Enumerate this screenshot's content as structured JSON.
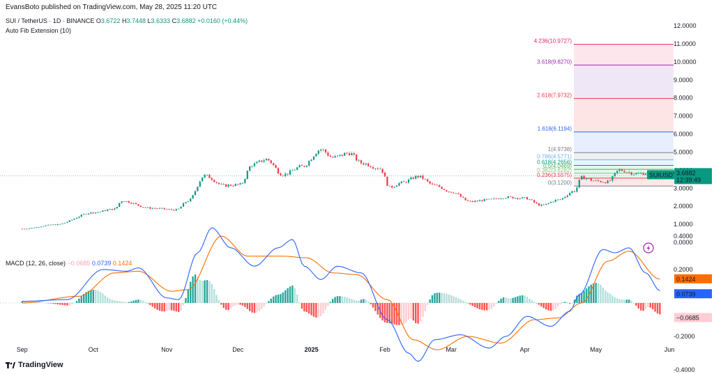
{
  "publisher": "EvansBoto published on TradingView.com, May 28, 2025 11:20 UTC",
  "header": {
    "symbol": "SUI / TetherUS · 1D · BINANCE",
    "o_label": "O",
    "o": "3.6722",
    "h_label": "H",
    "h": "3.7448",
    "l_label": "L",
    "l": "3.6333",
    "c_label": "C",
    "c": "3.6882",
    "change": "+0.0160 (+0.44%)"
  },
  "indicator_label": "Auto Fib Extension (10)",
  "macd_legend": {
    "name": "MACD (12, 26, close)",
    "hist": "−0.0685",
    "macd": "0.0739",
    "signal": "0.1424"
  },
  "brand": "TradingView",
  "icon": "lightning-icon",
  "colors": {
    "up": "#089981",
    "down": "#f23645",
    "macd": "#2962ff",
    "signal": "#ff6d00",
    "hist_up_strong": "#26a69a",
    "hist_up_weak": "#b2dfdb",
    "hist_down_strong": "#ff5252",
    "hist_down_weak": "#ffcdd2"
  },
  "chart_data": [
    {
      "type": "candlestick",
      "title": "SUI / TetherUS · 1D · BINANCE",
      "price_axis_ticks": [
        "12.0000",
        "11.0000",
        "10.0000",
        "9.0000",
        "8.0000",
        "7.0000",
        "6.0000",
        "5.0000",
        "4.0000",
        "3.0000",
        "2.0000",
        "1.0000",
        "0.0000"
      ],
      "ylim": [
        -0.3,
        12.3
      ],
      "x_ticks": [
        "Sep",
        "Oct",
        "Nov",
        "Dec",
        "2025",
        "Feb",
        "Mar",
        "Apr",
        "May",
        "Jun"
      ],
      "last_price_label": "SUIUSDT",
      "last_price": "3.6882",
      "countdown": "12:39:49",
      "grid": false,
      "anchors": [
        [
          "2024-09-01",
          0.75
        ],
        [
          "2024-09-15",
          0.98
        ],
        [
          "2024-10-01",
          1.65
        ],
        [
          "2024-10-10",
          1.85
        ],
        [
          "2024-10-13",
          2.3
        ],
        [
          "2024-10-25",
          1.9
        ],
        [
          "2024-11-05",
          1.8
        ],
        [
          "2024-11-10",
          2.3
        ],
        [
          "2024-11-17",
          3.7
        ],
        [
          "2024-11-25",
          3.15
        ],
        [
          "2024-12-02",
          3.2
        ],
        [
          "2024-12-07",
          4.3
        ],
        [
          "2024-12-13",
          4.6
        ],
        [
          "2024-12-20",
          3.75
        ],
        [
          "2024-12-28",
          4.2
        ],
        [
          "2025-01-05",
          5.15
        ],
        [
          "2025-01-10",
          4.7
        ],
        [
          "2025-01-17",
          4.95
        ],
        [
          "2025-01-22",
          4.4
        ],
        [
          "2025-01-30",
          4.1
        ],
        [
          "2025-02-03",
          3.05
        ],
        [
          "2025-02-08",
          3.3
        ],
        [
          "2025-02-15",
          3.65
        ],
        [
          "2025-02-22",
          3.15
        ],
        [
          "2025-03-01",
          2.8
        ],
        [
          "2025-03-09",
          2.25
        ],
        [
          "2025-03-16",
          2.35
        ],
        [
          "2025-03-24",
          2.5
        ],
        [
          "2025-04-01",
          2.45
        ],
        [
          "2025-04-08",
          2.05
        ],
        [
          "2025-04-15",
          2.35
        ],
        [
          "2025-04-22",
          2.85
        ],
        [
          "2025-04-25",
          3.6
        ],
        [
          "2025-05-01",
          3.4
        ],
        [
          "2025-05-06",
          3.35
        ],
        [
          "2025-05-11",
          4.0
        ],
        [
          "2025-05-18",
          3.8
        ],
        [
          "2025-05-24",
          3.85
        ],
        [
          "2025-05-28",
          3.69
        ]
      ],
      "fib_extension": {
        "levels": [
          {
            "ratio": "0",
            "price": 3.12,
            "label": "0(3.1200)",
            "color": "#787b86"
          },
          {
            "ratio": "0.236",
            "price": 3.5575,
            "label": "0.236(3.5575)",
            "color": "#f23645"
          },
          {
            "ratio": "0.382",
            "price": 3.8282,
            "label": "0.382(3.8282)",
            "color": "#81c784"
          },
          {
            "ratio": "0.5",
            "price": 4.0469,
            "label": "0.5(4.0469)",
            "color": "#4caf50"
          },
          {
            "ratio": "0.618",
            "price": 4.2656,
            "label": "0.618(4.2656)",
            "color": "#089981"
          },
          {
            "ratio": "0.786",
            "price": 4.5771,
            "label": "0.786(4.5771)",
            "color": "#64b5f6"
          },
          {
            "ratio": "1",
            "price": 4.9738,
            "label": "1(4.9738)",
            "color": "#787b86"
          },
          {
            "ratio": "1.618",
            "price": 6.1194,
            "label": "1.618(6.1194)",
            "color": "#2962ff"
          },
          {
            "ratio": "2.618",
            "price": 7.9732,
            "label": "2.618(7.9732)",
            "color": "#f23645"
          },
          {
            "ratio": "3.618",
            "price": 9.827,
            "label": "3.618(9.8270)",
            "color": "#9c27b0"
          },
          {
            "ratio": "4.236",
            "price": 10.9727,
            "label": "4.236(10.9727)",
            "color": "#e91e63"
          }
        ]
      }
    },
    {
      "type": "line",
      "title": "MACD (12, 26, close)",
      "axis_ticks": [
        "0.4000",
        "0.2000",
        "-0.2000",
        "-0.4000"
      ],
      "ylim": [
        -0.42,
        0.48
      ],
      "last_values": {
        "histogram": "−0.0685",
        "macd": "0.0739",
        "signal": "0.1424"
      },
      "macd_anchors": [
        [
          "2024-09-01",
          0.01
        ],
        [
          "2024-09-20",
          0.02
        ],
        [
          "2024-10-05",
          0.2
        ],
        [
          "2024-10-15",
          0.19
        ],
        [
          "2024-10-20",
          0.21
        ],
        [
          "2024-11-01",
          0.03
        ],
        [
          "2024-11-06",
          0.02
        ],
        [
          "2024-11-14",
          0.3
        ],
        [
          "2024-11-20",
          0.45
        ],
        [
          "2024-11-28",
          0.33
        ],
        [
          "2024-12-08",
          0.22
        ],
        [
          "2024-12-18",
          0.33
        ],
        [
          "2024-12-24",
          0.38
        ],
        [
          "2024-12-29",
          0.22
        ],
        [
          "2025-01-05",
          0.14
        ],
        [
          "2025-01-12",
          0.22
        ],
        [
          "2025-01-22",
          0.18
        ],
        [
          "2025-02-02",
          -0.1
        ],
        [
          "2025-02-11",
          -0.3
        ],
        [
          "2025-02-15",
          -0.35
        ],
        [
          "2025-02-22",
          -0.22
        ],
        [
          "2025-03-05",
          -0.19
        ],
        [
          "2025-03-17",
          -0.27
        ],
        [
          "2025-03-24",
          -0.2
        ],
        [
          "2025-04-02",
          -0.08
        ],
        [
          "2025-04-12",
          -0.14
        ],
        [
          "2025-04-20",
          -0.05
        ],
        [
          "2025-04-24",
          0.05
        ],
        [
          "2025-05-04",
          0.32
        ],
        [
          "2025-05-09",
          0.3
        ],
        [
          "2025-05-15",
          0.33
        ],
        [
          "2025-05-22",
          0.18
        ],
        [
          "2025-05-28",
          0.0739
        ]
      ],
      "signal_anchors": [
        [
          "2024-09-01",
          0.0
        ],
        [
          "2024-09-25",
          0.04
        ],
        [
          "2024-10-10",
          0.18
        ],
        [
          "2024-10-20",
          0.19
        ],
        [
          "2024-11-03",
          0.07
        ],
        [
          "2024-11-10",
          0.08
        ],
        [
          "2024-11-24",
          0.4
        ],
        [
          "2024-12-05",
          0.28
        ],
        [
          "2024-12-20",
          0.28
        ],
        [
          "2024-12-30",
          0.27
        ],
        [
          "2025-01-10",
          0.18
        ],
        [
          "2025-01-20",
          0.17
        ],
        [
          "2025-02-02",
          0.02
        ],
        [
          "2025-02-13",
          -0.22
        ],
        [
          "2025-02-23",
          -0.28
        ],
        [
          "2025-03-08",
          -0.2
        ],
        [
          "2025-03-22",
          -0.24
        ],
        [
          "2025-04-05",
          -0.1
        ],
        [
          "2025-04-15",
          -0.09
        ],
        [
          "2025-04-25",
          0.0
        ],
        [
          "2025-05-06",
          0.25
        ],
        [
          "2025-05-15",
          0.31
        ],
        [
          "2025-05-28",
          0.1424
        ]
      ]
    }
  ]
}
